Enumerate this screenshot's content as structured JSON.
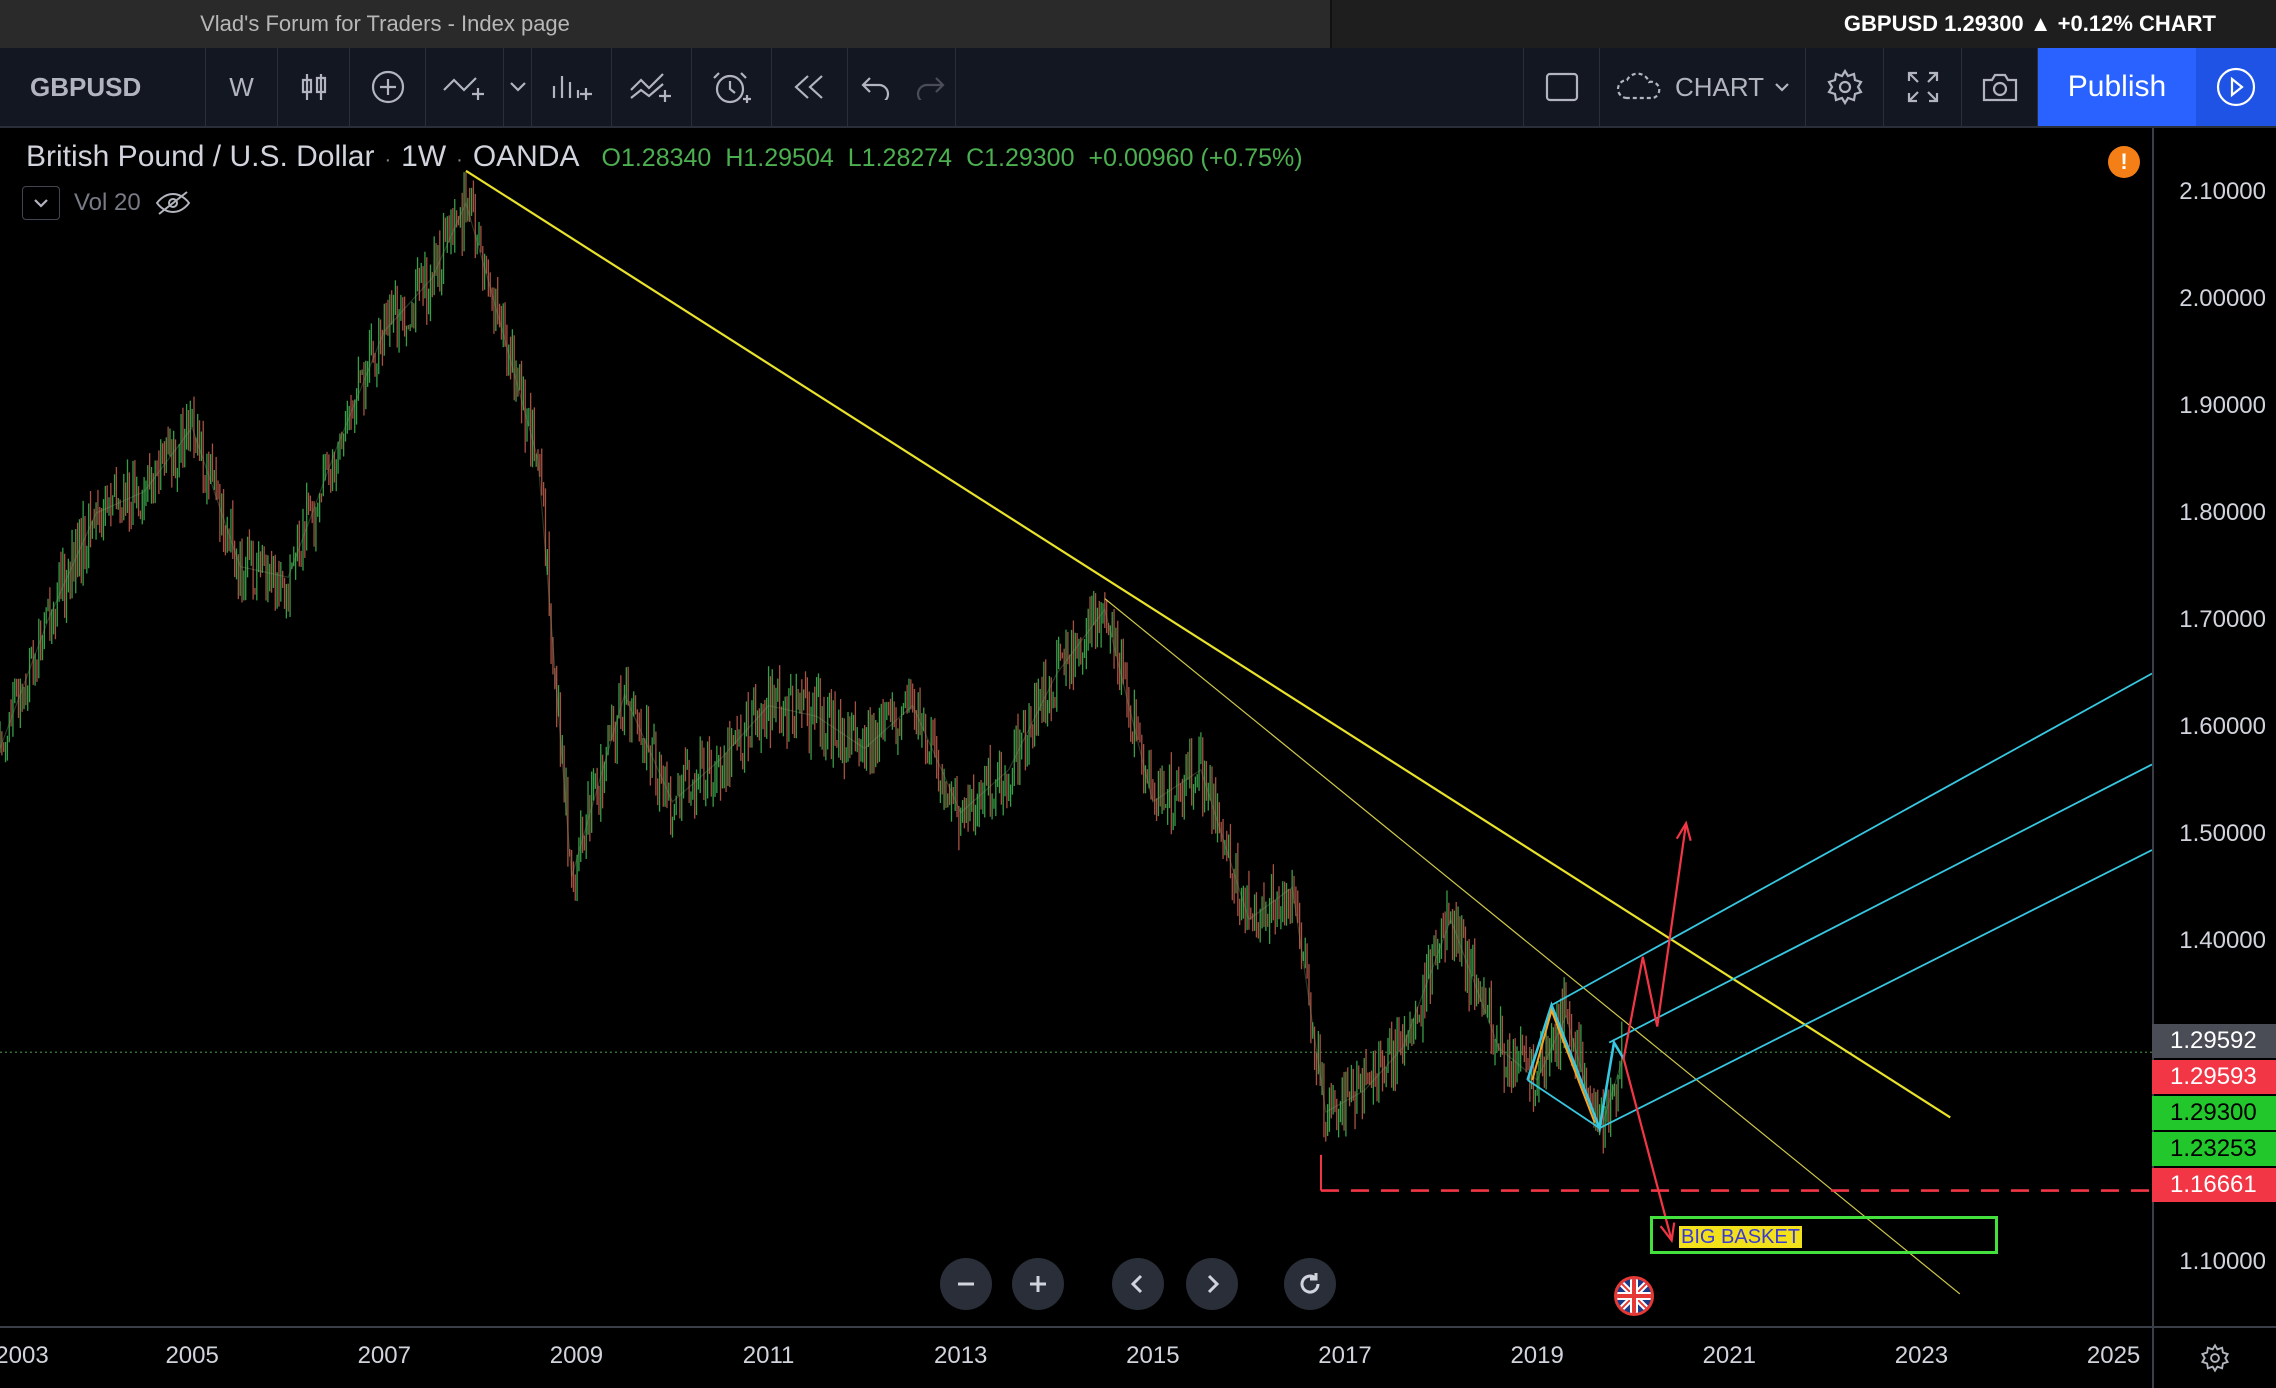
{
  "window": {
    "title": "Vlad's Forum for Traders - Index page",
    "ticker_strip": "GBPUSD 1.29300 ▲ +0.12% CHART"
  },
  "toolbar": {
    "symbol": "GBPUSD",
    "interval": "W",
    "chart_type": "CHART",
    "publish_label": "Publish",
    "icons": [
      "candles-icon",
      "add-indicator-icon",
      "drawing-tools-icon",
      "chevron-down-icon",
      "bar-pattern-icon",
      "templates-icon",
      "alert-icon",
      "replay-icon",
      "undo-icon",
      "redo-icon",
      "layout-icon",
      "cloud-icon",
      "gear-icon",
      "fullscreen-icon",
      "camera-icon",
      "play-icon"
    ]
  },
  "legend": {
    "title": "British Pound / U.S. Dollar",
    "interval": "1W",
    "source": "OANDA",
    "open": "O1.28340",
    "high": "H1.29504",
    "low": "L1.28274",
    "close": "C1.29300",
    "change": "+0.00960 (+0.75%)",
    "volume": "Vol 20"
  },
  "price_labels": [
    {
      "value": "1.29592",
      "bg": "#4a4d55",
      "fg": "#ffffff"
    },
    {
      "value": "1.29593",
      "bg": "#f23645",
      "fg": "#ffffff"
    },
    {
      "value": "1.29300",
      "bg": "#22c72b",
      "fg": "#000000"
    },
    {
      "value": "1.23253",
      "bg": "#22c72b",
      "fg": "#000000"
    },
    {
      "value": "1.16661",
      "bg": "#f23645",
      "fg": "#ffffff"
    }
  ],
  "annotation": {
    "basket": "BIG BASKET"
  },
  "chart_data": {
    "type": "line",
    "title": "British Pound / U.S. Dollar",
    "series": [
      {
        "name": "",
        "x": [
          2003.0,
          2003.5,
          2004.0,
          2004.5,
          2005.0,
          2005.5,
          2006.0,
          2006.5,
          2007.0,
          2007.5,
          2007.85,
          2008.2,
          2008.6,
          2008.95,
          2009.5,
          2010.0,
          2010.5,
          2011.0,
          2011.5,
          2012.0,
          2012.5,
          2013.0,
          2013.5,
          2014.0,
          2014.5,
          2015.0,
          2015.5,
          2016.0,
          2016.45,
          2016.8,
          2017.2,
          2017.6,
          2018.1,
          2018.6,
          2019.0,
          2019.3,
          2019.65,
          2019.9
        ],
        "values": [
          1.58,
          1.7,
          1.8,
          1.82,
          1.88,
          1.75,
          1.74,
          1.86,
          1.97,
          2.02,
          2.09,
          1.98,
          1.85,
          1.46,
          1.63,
          1.53,
          1.57,
          1.62,
          1.61,
          1.58,
          1.62,
          1.52,
          1.56,
          1.65,
          1.71,
          1.53,
          1.56,
          1.42,
          1.45,
          1.24,
          1.26,
          1.3,
          1.42,
          1.3,
          1.27,
          1.33,
          1.22,
          1.293
        ]
      }
    ],
    "ylim": [
      1.04,
      2.16
    ],
    "xlim": [
      2003.0,
      2025.4
    ],
    "yticks": [
      "2.10000",
      "2.00000",
      "1.90000",
      "1.80000",
      "1.70000",
      "1.60000",
      "1.50000",
      "1.40000",
      "1.10000"
    ],
    "ytick_values": [
      2.1,
      2.0,
      1.9,
      1.8,
      1.7,
      1.6,
      1.5,
      1.4,
      1.1
    ],
    "xticks": [
      "2003",
      "2005",
      "2007",
      "2009",
      "2011",
      "2013",
      "2015",
      "2017",
      "2019",
      "2021",
      "2023",
      "2025"
    ],
    "xtick_values": [
      2003,
      2005,
      2007,
      2009,
      2011,
      2013,
      2015,
      2017,
      2019,
      2021,
      2023,
      2025
    ],
    "grid": false
  }
}
